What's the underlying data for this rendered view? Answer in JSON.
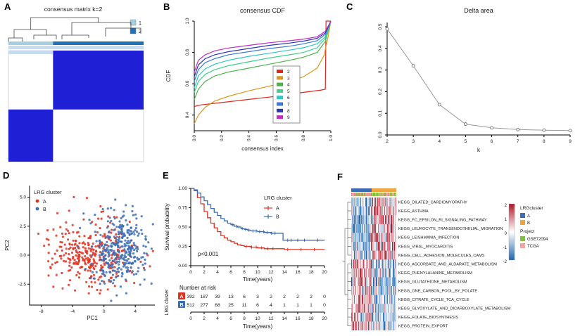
{
  "panels": {
    "A": {
      "label": "A"
    },
    "B": {
      "label": "B"
    },
    "C": {
      "label": "C"
    },
    "D": {
      "label": "D"
    },
    "E": {
      "label": "E"
    },
    "F": {
      "label": "F"
    }
  },
  "chart_data": [
    {
      "panel": "A",
      "type": "heatmap",
      "title": "consensus matrix k=2",
      "legend": [
        {
          "label": "1",
          "color": "#a6cee3"
        },
        {
          "label": "2",
          "color": "#2171b5"
        }
      ],
      "matrix": {
        "cluster1_fraction": 0.33,
        "cluster2_fraction": 0.67,
        "split_row": 0.53,
        "block_color": "#1f1fd6",
        "background": "#ffffff",
        "top_strip_color": "#c6dbef",
        "annotation_bar": [
          {
            "cluster": "1",
            "color": "#a6cee3",
            "fraction": 0.33
          },
          {
            "cluster": "2",
            "color": "#2171b5",
            "fraction": 0.67
          }
        ]
      }
    },
    {
      "panel": "B",
      "type": "line",
      "title": "consensus CDF",
      "xlabel": "consensus index",
      "ylabel": "CDF",
      "xlim": [
        0,
        1
      ],
      "ylim": [
        0.3,
        1.0
      ],
      "xticks": [
        0.0,
        0.2,
        0.4,
        0.6,
        0.8,
        1.0
      ],
      "yticks": [
        0.4,
        0.6,
        0.8,
        1.0
      ],
      "series": [
        {
          "name": "2",
          "color": "#e02620",
          "points": [
            [
              0,
              0.455
            ],
            [
              0.05,
              0.465
            ],
            [
              0.2,
              0.48
            ],
            [
              0.4,
              0.5
            ],
            [
              0.6,
              0.52
            ],
            [
              0.8,
              0.545
            ],
            [
              0.93,
              0.56
            ],
            [
              0.96,
              0.565
            ],
            [
              0.965,
              1.0
            ],
            [
              1,
              1.0
            ]
          ]
        },
        {
          "name": "3",
          "color": "#d79a1f",
          "points": [
            [
              0,
              0.345
            ],
            [
              0.03,
              0.4
            ],
            [
              0.08,
              0.45
            ],
            [
              0.15,
              0.49
            ],
            [
              0.25,
              0.52
            ],
            [
              0.4,
              0.555
            ],
            [
              0.55,
              0.585
            ],
            [
              0.7,
              0.615
            ],
            [
              0.8,
              0.645
            ],
            [
              0.9,
              0.7
            ],
            [
              0.95,
              0.78
            ],
            [
              0.98,
              0.9
            ],
            [
              1,
              1.0
            ]
          ]
        },
        {
          "name": "4",
          "color": "#4bb449",
          "points": [
            [
              0,
              0.5
            ],
            [
              0.03,
              0.565
            ],
            [
              0.08,
              0.615
            ],
            [
              0.15,
              0.65
            ],
            [
              0.25,
              0.675
            ],
            [
              0.4,
              0.7
            ],
            [
              0.55,
              0.725
            ],
            [
              0.7,
              0.75
            ],
            [
              0.8,
              0.77
            ],
            [
              0.9,
              0.8
            ],
            [
              0.96,
              0.87
            ],
            [
              1,
              1.0
            ]
          ]
        },
        {
          "name": "5",
          "color": "#3fd08c",
          "points": [
            [
              0,
              0.545
            ],
            [
              0.03,
              0.615
            ],
            [
              0.08,
              0.66
            ],
            [
              0.15,
              0.69
            ],
            [
              0.25,
              0.715
            ],
            [
              0.4,
              0.74
            ],
            [
              0.55,
              0.765
            ],
            [
              0.7,
              0.785
            ],
            [
              0.8,
              0.8
            ],
            [
              0.9,
              0.83
            ],
            [
              0.96,
              0.89
            ],
            [
              1,
              1.0
            ]
          ]
        },
        {
          "name": "6",
          "color": "#2fc6c9",
          "points": [
            [
              0,
              0.575
            ],
            [
              0.03,
              0.65
            ],
            [
              0.08,
              0.695
            ],
            [
              0.15,
              0.725
            ],
            [
              0.25,
              0.75
            ],
            [
              0.4,
              0.775
            ],
            [
              0.55,
              0.795
            ],
            [
              0.7,
              0.815
            ],
            [
              0.8,
              0.83
            ],
            [
              0.9,
              0.855
            ],
            [
              0.96,
              0.9
            ],
            [
              1,
              1.0
            ]
          ]
        },
        {
          "name": "7",
          "color": "#3a7bd5",
          "points": [
            [
              0,
              0.615
            ],
            [
              0.03,
              0.69
            ],
            [
              0.08,
              0.735
            ],
            [
              0.15,
              0.76
            ],
            [
              0.25,
              0.785
            ],
            [
              0.4,
              0.805
            ],
            [
              0.55,
              0.825
            ],
            [
              0.7,
              0.84
            ],
            [
              0.8,
              0.855
            ],
            [
              0.9,
              0.875
            ],
            [
              0.96,
              0.915
            ],
            [
              1,
              1.0
            ]
          ]
        },
        {
          "name": "8",
          "color": "#2b35b5",
          "points": [
            [
              0,
              0.645
            ],
            [
              0.03,
              0.72
            ],
            [
              0.08,
              0.76
            ],
            [
              0.15,
              0.785
            ],
            [
              0.25,
              0.805
            ],
            [
              0.4,
              0.825
            ],
            [
              0.55,
              0.845
            ],
            [
              0.7,
              0.86
            ],
            [
              0.8,
              0.872
            ],
            [
              0.9,
              0.89
            ],
            [
              0.96,
              0.925
            ],
            [
              1,
              1.0
            ]
          ]
        },
        {
          "name": "9",
          "color": "#c32bc3",
          "points": [
            [
              0,
              0.675
            ],
            [
              0.03,
              0.75
            ],
            [
              0.08,
              0.785
            ],
            [
              0.15,
              0.81
            ],
            [
              0.25,
              0.828
            ],
            [
              0.4,
              0.845
            ],
            [
              0.55,
              0.862
            ],
            [
              0.7,
              0.875
            ],
            [
              0.8,
              0.885
            ],
            [
              0.9,
              0.9
            ],
            [
              0.96,
              0.935
            ],
            [
              1,
              1.0
            ]
          ]
        }
      ]
    },
    {
      "panel": "C",
      "type": "line",
      "title": "Delta area",
      "xlabel": "k",
      "ylabel": "",
      "x": [
        2,
        3,
        4,
        5,
        6,
        7,
        8,
        9
      ],
      "y": [
        0.49,
        0.32,
        0.14,
        0.05,
        0.033,
        0.025,
        0.022,
        0.02
      ],
      "xticks": [
        2,
        3,
        4,
        5,
        6,
        7,
        8,
        9
      ],
      "yticks": [
        0.0,
        0.1,
        0.2,
        0.3,
        0.4,
        0.5
      ],
      "line_color": "#999999",
      "marker": "open-circle"
    },
    {
      "panel": "D",
      "type": "scatter",
      "xlabel": "PC1",
      "ylabel": "PC2",
      "legend_title": "LRG cluster",
      "xlim": [
        -9.5,
        6.5
      ],
      "ylim": [
        -4.3,
        6.0
      ],
      "xticks": [
        -8,
        -4,
        0,
        4
      ],
      "yticks": [
        -2.5,
        0.0,
        2.5,
        5.0
      ],
      "series": [
        {
          "name": "A",
          "color": "#e0301e",
          "count": 330,
          "center": [
            -1.6,
            0.1
          ],
          "spread": [
            2.6,
            1.5
          ]
        },
        {
          "name": "B",
          "color": "#3a6db5",
          "count": 330,
          "center": [
            1.8,
            0.5
          ],
          "spread": [
            1.9,
            1.6
          ]
        }
      ]
    },
    {
      "panel": "E",
      "type": "km",
      "ylabel": "Survival probability",
      "xlabel": "Time(years)",
      "pvalue": "p<0.001",
      "legend_title": "LRG cluster",
      "xticks": [
        0,
        2,
        4,
        6,
        8,
        10,
        12,
        14,
        16,
        18,
        20
      ],
      "yticks": [
        0.0,
        0.25,
        0.5,
        0.75,
        1.0
      ],
      "series": [
        {
          "name": "A",
          "color": "#e0301e",
          "steps": [
            [
              0,
              1.0
            ],
            [
              0.5,
              0.97
            ],
            [
              1,
              0.88
            ],
            [
              1.5,
              0.8
            ],
            [
              2,
              0.7
            ],
            [
              2.5,
              0.62
            ],
            [
              3,
              0.55
            ],
            [
              3.5,
              0.49
            ],
            [
              4,
              0.44
            ],
            [
              4.5,
              0.39
            ],
            [
              5,
              0.36
            ],
            [
              5.5,
              0.33
            ],
            [
              6,
              0.31
            ],
            [
              6.5,
              0.29
            ],
            [
              7,
              0.27
            ],
            [
              7.5,
              0.26
            ],
            [
              8,
              0.25
            ],
            [
              9,
              0.24
            ],
            [
              10,
              0.23
            ],
            [
              11,
              0.22
            ],
            [
              12,
              0.22
            ],
            [
              14,
              0.21
            ],
            [
              20,
              0.21
            ]
          ],
          "censor_times": [
            8.3,
            9.1,
            9.8,
            10.6,
            11.5,
            12.3,
            14.5,
            16.5,
            18.5
          ]
        },
        {
          "name": "B",
          "color": "#3a6db5",
          "steps": [
            [
              0,
              1.0
            ],
            [
              0.5,
              0.98
            ],
            [
              1,
              0.94
            ],
            [
              1.5,
              0.89
            ],
            [
              2,
              0.84
            ],
            [
              2.5,
              0.79
            ],
            [
              3,
              0.74
            ],
            [
              3.5,
              0.69
            ],
            [
              4,
              0.65
            ],
            [
              4.5,
              0.61
            ],
            [
              5,
              0.58
            ],
            [
              5.5,
              0.55
            ],
            [
              6,
              0.53
            ],
            [
              6.5,
              0.51
            ],
            [
              7,
              0.5
            ],
            [
              7.5,
              0.48
            ],
            [
              8,
              0.47
            ],
            [
              8.5,
              0.46
            ],
            [
              9,
              0.45
            ],
            [
              10,
              0.44
            ],
            [
              11,
              0.43
            ],
            [
              12,
              0.42
            ],
            [
              13,
              0.42
            ],
            [
              13.8,
              0.33
            ],
            [
              16,
              0.33
            ],
            [
              18,
              0.33
            ],
            [
              20,
              0.33
            ]
          ],
          "censor_times": [
            6.3,
            6.8,
            7.2,
            7.7,
            8.2,
            8.7,
            9.3,
            9.8,
            10.3,
            10.9,
            11.4,
            12.1,
            12.6,
            14.5,
            15,
            16,
            17,
            19
          ]
        }
      ],
      "risk_table": {
        "title": "Number at risk",
        "group_label": "LRG cluster",
        "times": [
          0,
          2,
          4,
          6,
          8,
          10,
          12,
          14,
          16,
          18,
          20
        ],
        "rows": [
          {
            "name": "A",
            "color": "#e0301e",
            "values": [
              392,
              187,
              39,
              13,
              6,
              3,
              2,
              2,
              2,
              2,
              0
            ]
          },
          {
            "name": "B",
            "color": "#3a6db5",
            "values": [
              512,
              277,
              68,
              25,
              11,
              6,
              4,
              1,
              1,
              1,
              0
            ]
          }
        ]
      }
    },
    {
      "panel": "F",
      "type": "heatmap",
      "rows": [
        "KEGG_DILATED_CARDIOMYOPATHY",
        "KEGG_ASTHMA",
        "KEGG_FC_EPSILON_RI_SIGNALING_PATHWAY",
        "KEGG_LEUKOCYTE_TRANSENDOTHELIAL_MIGRATION",
        "KEGG_LEISHMANIA_INFECTION",
        "KEGG_VIRAL_MYOCARDITIS",
        "KEGG_CELL_ADHESION_MOLECULES_CAMS",
        "KEGG_ASCORBATE_AND_ALDARATE_METABOLISM",
        "KEGG_PHENYLALANINE_METABOLISM",
        "KEGG_GLUTATHIONE_METABOLISM",
        "KEGG_ONE_CARBON_POOL_BY_FOLATE",
        "KEGG_CITRATE_CYCLE_TCA_CYCLE",
        "KEGG_GLYOXYLATE_AND_DICARBOXYLATE_METABOLISM",
        "KEGG_FOLATE_BIOSYNTHESIS",
        "KEGG_PROTEIN_EXPORT"
      ],
      "column_annotations": [
        {
          "name": "LRGcluster",
          "segments": [
            {
              "label": "A",
              "color": "#3b6cb4",
              "fraction": 0.45
            },
            {
              "label": "B",
              "color": "#eda63d",
              "fraction": 0.55
            }
          ]
        },
        {
          "name": "Project",
          "layout": "mixed",
          "items": [
            {
              "label": "GSE72094",
              "color": "#86bc42"
            },
            {
              "label": "TCGA",
              "color": "#f2a19e"
            }
          ]
        }
      ],
      "legends": [
        {
          "title": "LRGcluster",
          "items": [
            {
              "label": "A",
              "color": "#3b6cb4"
            },
            {
              "label": "B",
              "color": "#eda63d"
            }
          ]
        },
        {
          "title": "Project",
          "items": [
            {
              "label": "GSE72094",
              "color": "#86bc42"
            },
            {
              "label": "TCGA",
              "color": "#f2a19e"
            }
          ]
        }
      ],
      "colorbar": {
        "ticks": [
          2,
          1,
          0,
          -1,
          -2
        ],
        "max_color": "#b2182b",
        "mid_color": "#ffffff",
        "min_color": "#2166ac"
      }
    }
  ]
}
